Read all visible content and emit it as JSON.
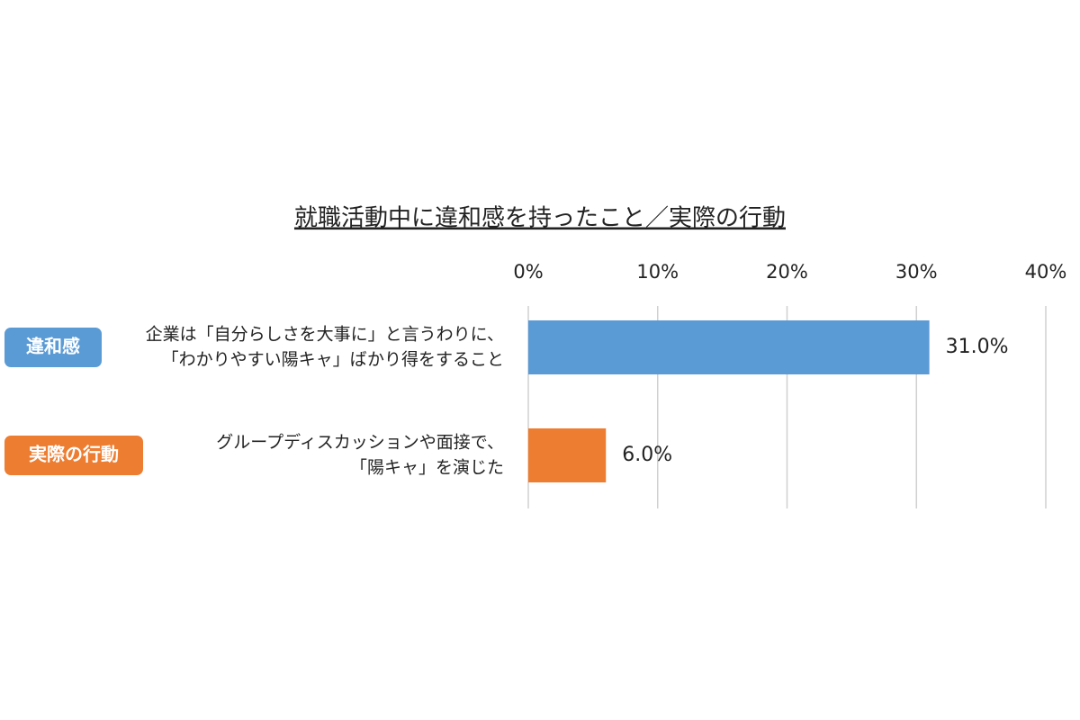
{
  "chart_data": {
    "type": "bar",
    "orientation": "horizontal",
    "title": "就職活動中に違和感を持ったこと／実際の行動",
    "badges": [
      "違和感",
      "実際の行動"
    ],
    "categories": [
      [
        "企業は「自分らしさを大事に」と言うわりに、",
        "「わかりやすい陽キャ」ばかり得をすること"
      ],
      [
        "グループディスカッションや面接で、",
        "「陽キャ」を演じた"
      ]
    ],
    "values": [
      31,
      6
    ],
    "value_labels": [
      "31.0%",
      "6.0%"
    ],
    "colors": [
      "#5b9bd5",
      "#ed7d31"
    ],
    "xlim": [
      0,
      40
    ],
    "xticks": [
      {
        "value": 0,
        "label": "0%"
      },
      {
        "value": 10,
        "label": "10%"
      },
      {
        "value": 20,
        "label": "20%"
      },
      {
        "value": 30,
        "label": "30%"
      },
      {
        "value": 40,
        "label": "40%"
      }
    ],
    "grid": true
  }
}
